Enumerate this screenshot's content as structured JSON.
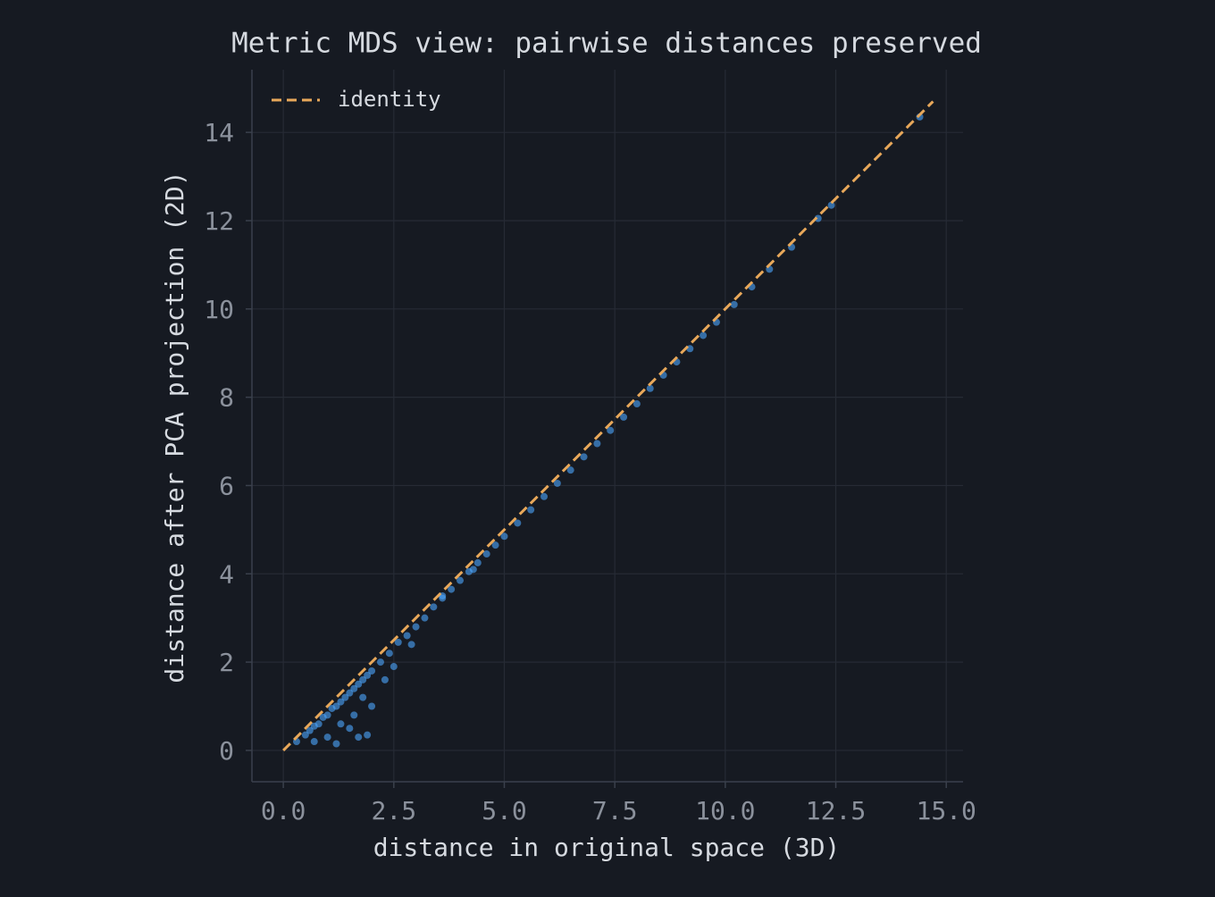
{
  "chart_data": {
    "type": "scatter",
    "title": "Metric MDS view: pairwise distances preserved",
    "x_label": "distance in original space  (3D)",
    "y_label": "distance after PCA projection  (2D)",
    "xlim": [
      -0.71,
      15.38
    ],
    "ylim": [
      -0.71,
      15.42
    ],
    "xticks": [
      {
        "value": 0,
        "label": "0.0"
      },
      2.5,
      {
        "value": 5,
        "label": "5.0"
      },
      7.5,
      {
        "value": 10,
        "label": "10.0"
      },
      12.5,
      {
        "value": 15,
        "label": "15.0"
      }
    ],
    "yticks": [
      0,
      2,
      4,
      6,
      8,
      10,
      12,
      14
    ],
    "grid": true,
    "legend": "upper left",
    "points": {
      "color": "#4da6ff",
      "x": [
        0.3,
        0.5,
        0.6,
        0.7,
        0.8,
        0.9,
        1.0,
        1.1,
        1.2,
        1.3,
        1.4,
        1.5,
        1.6,
        1.7,
        1.8,
        1.9,
        2.0,
        2.2,
        2.4,
        2.6,
        2.8,
        3.0,
        3.2,
        3.4,
        3.6,
        3.8,
        4.0,
        4.2,
        4.4,
        4.6,
        4.8,
        5.0,
        5.3,
        5.6,
        5.9,
        6.2,
        6.5,
        6.8,
        7.1,
        7.4,
        7.7,
        8.0,
        8.3,
        8.6,
        8.9,
        9.2,
        9.5,
        9.8,
        10.2,
        10.6,
        11.0,
        11.5,
        12.1,
        12.4,
        14.4,
        0.7,
        1.0,
        1.2,
        1.5,
        1.7,
        1.9,
        1.6,
        2.0,
        2.5,
        2.9,
        3.6,
        4.3,
        1.3,
        1.8,
        2.3
      ],
      "y": [
        0.2,
        0.35,
        0.45,
        0.55,
        0.6,
        0.75,
        0.8,
        0.95,
        1.0,
        1.1,
        1.2,
        1.3,
        1.4,
        1.5,
        1.6,
        1.7,
        1.8,
        2.0,
        2.2,
        2.45,
        2.6,
        2.8,
        3.0,
        3.25,
        3.45,
        3.65,
        3.85,
        4.05,
        4.25,
        4.45,
        4.65,
        4.85,
        5.15,
        5.45,
        5.75,
        6.05,
        6.35,
        6.65,
        6.95,
        7.25,
        7.55,
        7.85,
        8.2,
        8.5,
        8.8,
        9.1,
        9.4,
        9.7,
        10.1,
        10.5,
        10.9,
        11.4,
        12.05,
        12.35,
        14.35,
        0.2,
        0.3,
        0.15,
        0.5,
        0.3,
        0.35,
        0.8,
        1.0,
        1.9,
        2.4,
        3.5,
        4.1,
        0.6,
        1.2,
        1.6
      ]
    },
    "series": [
      {
        "name": "identity",
        "type": "line",
        "color": "#e8a85a",
        "dash": true,
        "x": [
          0,
          14.7
        ],
        "values": [
          0,
          14.7
        ]
      }
    ]
  }
}
